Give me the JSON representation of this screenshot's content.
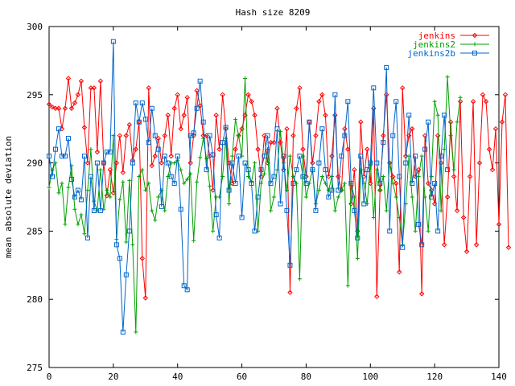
{
  "chart_data": {
    "type": "line",
    "title": "Hash size 8209",
    "xlabel": "",
    "ylabel": "mean absolute deviation",
    "xlim": [
      0,
      140
    ],
    "ylim": [
      275,
      300
    ],
    "xticks": [
      0,
      20,
      40,
      60,
      80,
      100,
      120,
      140
    ],
    "yticks": [
      275,
      280,
      285,
      290,
      295,
      300
    ],
    "grid": false,
    "legend_position": "top-right",
    "series": [
      {
        "name": "jenkins",
        "color": "#ff0000",
        "marker": "diamond",
        "values": [
          294.3,
          294.1,
          294.0,
          294.0,
          292.5,
          294.0,
          296.2,
          294.0,
          294.4,
          295.0,
          296.0,
          292.6,
          290.0,
          295.5,
          295.5,
          290.8,
          296.0,
          290.0,
          287.6,
          289.5,
          287.8,
          290.0,
          292.0,
          289.3,
          292.0,
          292.8,
          290.2,
          291.0,
          293.0,
          283.0,
          280.1,
          295.5,
          289.8,
          290.5,
          291.8,
          290.0,
          292.0,
          293.5,
          290.5,
          294.0,
          295.0,
          292.5,
          293.5,
          294.8,
          290.0,
          292.0,
          295.3,
          294.2,
          292.0,
          292.0,
          290.5,
          288.0,
          293.5,
          291.0,
          295.0,
          292.5,
          290.0,
          288.5,
          291.0,
          292.0,
          292.5,
          293.5,
          295.0,
          294.5,
          293.5,
          291.0,
          289.0,
          292.0,
          290.0,
          291.5,
          291.5,
          294.0,
          291.5,
          289.5,
          292.5,
          280.5,
          292.0,
          294.0,
          295.5,
          291.0,
          289.0,
          293.0,
          290.0,
          292.0,
          294.5,
          295.0,
          293.5,
          289.0,
          290.5,
          293.5,
          289.0,
          288.0,
          292.5,
          291.0,
          287.0,
          289.5,
          285.0,
          293.0,
          289.0,
          291.0,
          288.5,
          294.0,
          280.2,
          288.0,
          292.0,
          295.0,
          290.0,
          289.0,
          288.5,
          282.0,
          295.5,
          290.5,
          292.0,
          292.5,
          289.0,
          289.5,
          280.4,
          292.0,
          288.5,
          288.0,
          287.0,
          292.0,
          290.0,
          284.0,
          287.5,
          293.0,
          289.0,
          286.5,
          294.5,
          286.0,
          283.5,
          289.0,
          294.5,
          284.0,
          290.0,
          295.0,
          294.5,
          291.0,
          289.5,
          292.5,
          285.5,
          293.0,
          295.0,
          283.8
        ],
        "x_step": 1
      },
      {
        "name": "jenkins2",
        "color": "#00a000",
        "marker": "plus",
        "values": [
          288.2,
          289.5,
          290.0,
          287.8,
          288.5,
          285.5,
          288.2,
          289.8,
          286.6,
          285.5,
          286.2,
          284.8,
          288.0,
          291.0,
          287.2,
          286.5,
          289.5,
          286.6,
          288.0,
          287.5,
          292.0,
          284.4,
          287.3,
          288.6,
          284.2,
          288.7,
          284.0,
          277.6,
          289.0,
          289.5,
          288.0,
          288.5,
          286.5,
          285.8,
          287.5,
          288.0,
          286.5,
          289.0,
          290.0,
          290.0,
          290.2,
          289.5,
          288.5,
          288.8,
          289.2,
          284.3,
          288.6,
          290.4,
          291.8,
          290.3,
          288.3,
          285.0,
          287.5,
          287.5,
          289.0,
          291.8,
          287.0,
          290.5,
          293.2,
          292.0,
          290.5,
          296.2,
          289.0,
          288.6,
          290.0,
          285.0,
          288.5,
          289.2,
          291.0,
          286.5,
          287.5,
          289.5,
          292.3,
          290.0,
          288.0,
          290.5,
          289.0,
          288.5,
          281.5,
          290.5,
          287.5,
          288.5,
          289.5,
          287.0,
          288.0,
          289.0,
          288.5,
          288.0,
          289.0,
          286.5,
          287.5,
          288.0,
          288.5,
          281.0,
          288.5,
          287.5,
          283.0,
          289.5,
          288.5,
          287.0,
          290.0,
          286.0,
          289.5,
          288.0,
          289.0,
          286.5,
          290.0,
          288.5,
          287.5,
          286.0,
          284.0,
          287.0,
          290.5,
          287.5,
          285.0,
          289.0,
          290.5,
          287.5,
          285.0,
          289.0,
          294.5,
          293.5,
          286.5,
          291.0,
          296.3,
          292.0,
          289.5,
          293.0,
          294.8
        ],
        "x_step": 1
      },
      {
        "name": "jenkins2b",
        "color": "#0066cc",
        "marker": "square",
        "values": [
          290.5,
          289.0,
          291.0,
          292.5,
          290.5,
          290.5,
          291.8,
          288.8,
          287.5,
          288.0,
          287.3,
          290.5,
          284.5,
          289.0,
          286.5,
          290.0,
          286.5,
          290.0,
          290.8,
          290.8,
          298.9,
          284.0,
          283.0,
          277.6,
          281.8,
          285.0,
          290.0,
          294.4,
          293.0,
          294.4,
          293.2,
          291.5,
          294.0,
          292.0,
          291.0,
          286.8,
          290.5,
          290.0,
          289.0,
          288.5,
          290.5,
          286.6,
          281.0,
          280.7,
          292.0,
          292.2,
          294.0,
          296.0,
          293.0,
          289.5,
          292.0,
          290.6,
          286.2,
          284.5,
          291.5,
          292.6,
          288.0,
          290.0,
          288.5,
          290.5,
          286.0,
          290.0,
          289.5,
          288.5,
          285.0,
          287.5,
          289.5,
          290.5,
          292.0,
          288.5,
          289.0,
          292.5,
          287.0,
          290.5,
          286.5,
          282.5,
          288.5,
          289.5,
          290.5,
          289.0,
          288.5,
          293.0,
          289.5,
          286.5,
          290.0,
          292.5,
          289.5,
          287.5,
          288.0,
          295.0,
          288.0,
          290.5,
          292.0,
          294.5,
          288.5,
          286.5,
          284.5,
          290.5,
          287.0,
          289.5,
          290.0,
          295.5,
          290.0,
          288.5,
          291.5,
          297.0,
          285.0,
          292.0,
          294.5,
          289.0,
          283.8,
          290.0,
          293.5,
          288.5,
          290.5,
          285.5,
          284.0,
          291.0,
          293.0,
          287.5,
          288.5,
          285.0,
          290.5,
          293.5,
          289.5
        ],
        "x_step": 1
      }
    ]
  }
}
